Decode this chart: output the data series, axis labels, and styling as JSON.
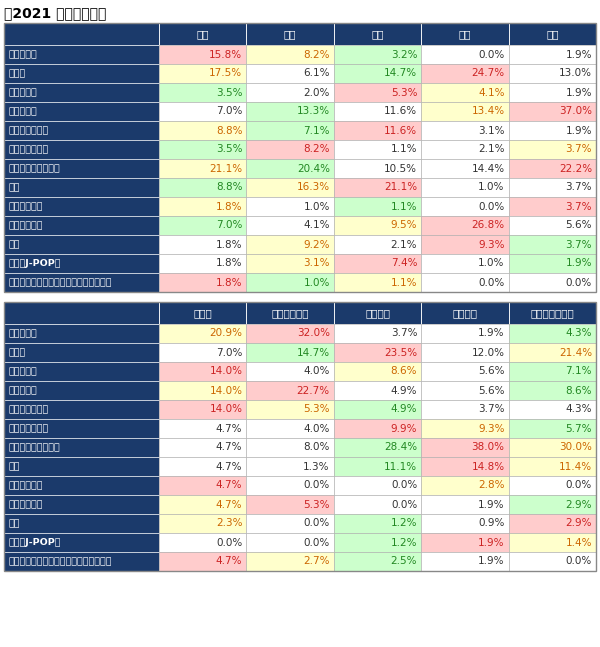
{
  "title": "【2021 年調査結果】",
  "table1_cols": [
    "",
    "香港",
    "台湾",
    "中国",
    "韓国",
    "タイ"
  ],
  "table2_cols": [
    "",
    "インド",
    "インドネシア",
    "アメリカ",
    "イギリス",
    "オーストラリア"
  ],
  "rows": [
    "四季がある",
    "日本食",
    "治安が良い",
    "街がきれい",
    "商品の質が良い",
    "交通の便が良い",
    "自然や景色がきれい",
    "歴史",
    "ファッション",
    "漫画やアニメ",
    "温泉",
    "音楽（J-POP）",
    "伝統的なスポーツ（相撲・柔道・空手）"
  ],
  "table1_data": [
    [
      15.8,
      8.2,
      3.2,
      0.0,
      1.9
    ],
    [
      17.5,
      6.1,
      14.7,
      24.7,
      13.0
    ],
    [
      3.5,
      2.0,
      5.3,
      4.1,
      1.9
    ],
    [
      7.0,
      13.3,
      11.6,
      13.4,
      37.0
    ],
    [
      8.8,
      7.1,
      11.6,
      3.1,
      1.9
    ],
    [
      3.5,
      8.2,
      1.1,
      2.1,
      3.7
    ],
    [
      21.1,
      20.4,
      10.5,
      14.4,
      22.2
    ],
    [
      8.8,
      16.3,
      21.1,
      1.0,
      3.7
    ],
    [
      1.8,
      1.0,
      1.1,
      0.0,
      3.7
    ],
    [
      7.0,
      4.1,
      9.5,
      26.8,
      5.6
    ],
    [
      1.8,
      9.2,
      2.1,
      9.3,
      3.7
    ],
    [
      1.8,
      3.1,
      7.4,
      1.0,
      1.9
    ],
    [
      1.8,
      1.0,
      1.1,
      0.0,
      0.0
    ]
  ],
  "table2_data": [
    [
      20.9,
      32.0,
      3.7,
      1.9,
      4.3
    ],
    [
      7.0,
      14.7,
      23.5,
      12.0,
      21.4
    ],
    [
      14.0,
      4.0,
      8.6,
      5.6,
      7.1
    ],
    [
      14.0,
      22.7,
      4.9,
      5.6,
      8.6
    ],
    [
      14.0,
      5.3,
      4.9,
      3.7,
      4.3
    ],
    [
      4.7,
      4.0,
      9.9,
      9.3,
      5.7
    ],
    [
      4.7,
      8.0,
      28.4,
      38.0,
      30.0
    ],
    [
      4.7,
      1.3,
      11.1,
      14.8,
      11.4
    ],
    [
      4.7,
      0.0,
      0.0,
      2.8,
      0.0
    ],
    [
      4.7,
      5.3,
      0.0,
      1.9,
      2.9
    ],
    [
      2.3,
      0.0,
      1.2,
      0.9,
      2.9
    ],
    [
      0.0,
      0.0,
      1.2,
      1.9,
      1.4
    ],
    [
      4.7,
      2.7,
      2.5,
      1.9,
      0.0
    ]
  ],
  "header_bg": "#1b3a6b",
  "header_fg": "#ffffff",
  "row_label_bg": "#1b3a6b",
  "row_label_fg": "#ffffff",
  "color_pink": "#ffcccc",
  "color_green": "#ccffcc",
  "color_yellow": "#ffffcc",
  "text_pink": "#cc2222",
  "text_green": "#228822",
  "text_orange": "#cc6600",
  "text_dark": "#333333",
  "cell_border_color": "#aaaaaa",
  "bg_color": "#ffffff",
  "title_color": "#000000",
  "outer_border": "#888888"
}
